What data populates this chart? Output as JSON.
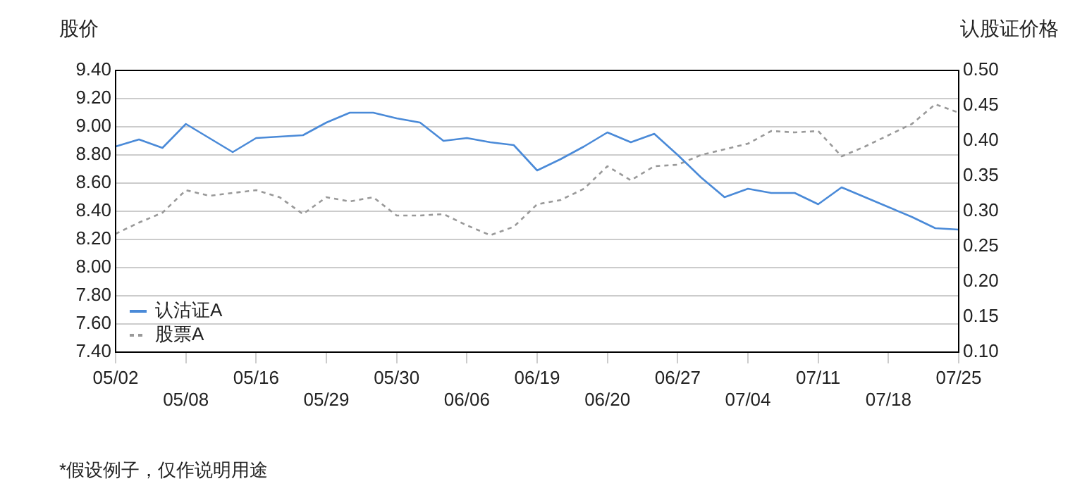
{
  "chart_data": {
    "type": "line",
    "categories": [
      "05/02",
      null,
      null,
      "05/08",
      null,
      null,
      "05/16",
      null,
      null,
      "05/29",
      null,
      null,
      "05/30",
      null,
      null,
      "06/06",
      null,
      null,
      "06/19",
      null,
      null,
      "06/20",
      null,
      null,
      "06/27",
      null,
      null,
      "07/04",
      null,
      null,
      "07/11",
      null,
      null,
      "07/18",
      null,
      null,
      "07/25"
    ],
    "series": [
      {
        "name": "认沽证A",
        "color": "#4a8ad8",
        "axis": "y2",
        "line_style": "solid",
        "values": [
          0.392,
          0.402,
          0.39,
          0.424,
          0.404,
          0.384,
          0.404,
          0.406,
          0.408,
          0.426,
          0.44,
          0.44,
          0.432,
          0.426,
          0.4,
          0.404,
          0.398,
          0.394,
          0.358,
          0.374,
          0.392,
          0.412,
          0.398,
          0.41,
          0.38,
          0.348,
          0.32,
          0.332,
          0.326,
          0.326,
          0.31,
          0.334,
          0.32,
          0.306,
          0.292,
          0.276,
          0.274
        ]
      },
      {
        "name": "股票A",
        "color": "#999999",
        "axis": "y",
        "line_style": "dashed",
        "values": [
          8.24,
          8.32,
          8.39,
          8.55,
          8.51,
          8.53,
          8.55,
          8.5,
          8.38,
          8.5,
          8.47,
          8.5,
          8.37,
          8.37,
          8.38,
          8.3,
          8.23,
          8.29,
          8.45,
          8.48,
          8.56,
          8.72,
          8.62,
          8.72,
          8.73,
          8.8,
          8.84,
          8.88,
          8.97,
          8.96,
          8.97,
          8.79,
          8.86,
          8.94,
          9.02,
          9.16,
          9.1
        ]
      }
    ],
    "ylabel": "股价",
    "y2label": "认股证价格",
    "ylim": [
      7.4,
      9.4
    ],
    "yticks": [
      {
        "value": 7.4,
        "label": "7.40"
      },
      {
        "value": 7.6,
        "label": "7.60"
      },
      {
        "value": 7.8,
        "label": "7.80"
      },
      {
        "value": 8,
        "label": "8.00"
      },
      {
        "value": 8.2,
        "label": "8.20"
      },
      {
        "value": 8.4,
        "label": "8.40"
      },
      {
        "value": 8.6,
        "label": "8.60"
      },
      {
        "value": 8.8,
        "label": "8.80"
      },
      {
        "value": 9,
        "label": "9.00"
      },
      {
        "value": 9.2,
        "label": "9.20"
      },
      {
        "value": 9.4,
        "label": "9.40"
      }
    ],
    "y2lim": [
      0.1,
      0.5
    ],
    "y2ticks": [
      {
        "value": 0.1,
        "label": "0.10"
      },
      {
        "value": 0.15,
        "label": "0.15"
      },
      {
        "value": 0.2,
        "label": "0.20"
      },
      {
        "value": 0.25,
        "label": "0.25"
      },
      {
        "value": 0.3,
        "label": "0.30"
      },
      {
        "value": 0.35,
        "label": "0.35"
      },
      {
        "value": 0.4,
        "label": "0.40"
      },
      {
        "value": 0.45,
        "label": "0.45"
      },
      {
        "value": 0.5,
        "label": "0.50"
      }
    ],
    "grid": "y",
    "legend": "bottom left",
    "marker": "none",
    "annotations": [
      "*假设例子，仅作说明用途"
    ]
  }
}
